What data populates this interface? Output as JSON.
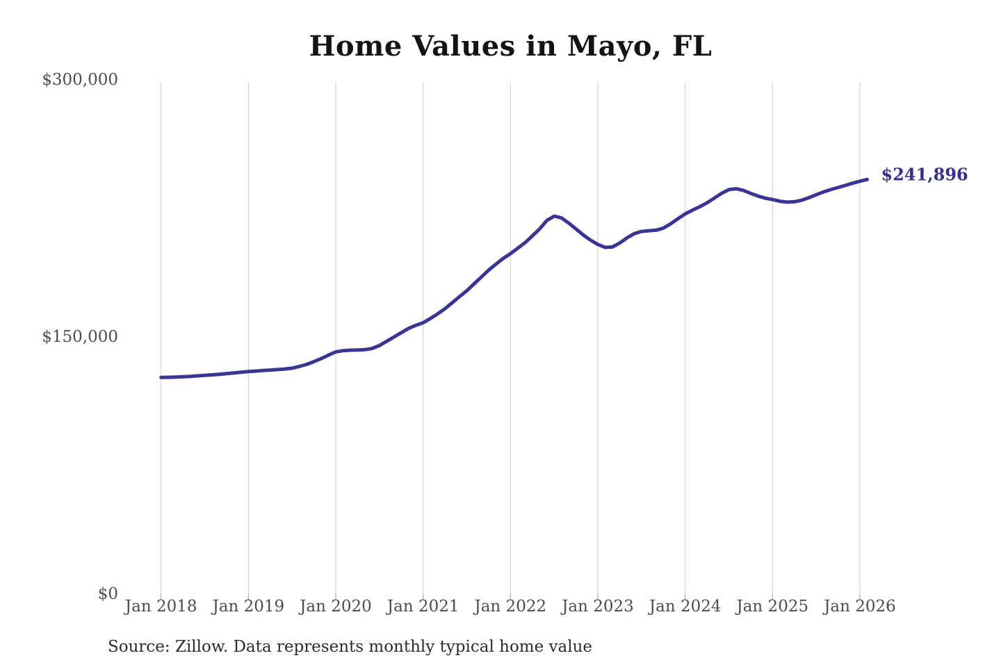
{
  "title": "Home Values in Mayo, FL",
  "annotation": {
    "label": "$241,896"
  },
  "source": "Source: Zillow. Data represents monthly typical home value",
  "colors": {
    "line": "#3a3594",
    "annotation": "#333090",
    "grid": "#cdcdcd",
    "tick": "#999999",
    "axis_text": "#4d4d4d",
    "title_text": "#141414",
    "source_text": "#2b2b2b",
    "background": "#ffffff"
  },
  "chart_data": {
    "type": "line",
    "title": "Home Values in Mayo, FL",
    "unit": "USD",
    "ylim": [
      0,
      300000
    ],
    "grid": "vertical-only",
    "legend": "none",
    "y_tick_labels": [
      "$0",
      "$150,000",
      "$300,000"
    ],
    "y_tick_values": [
      0,
      150000,
      300000
    ],
    "x_tick_labels": [
      "Jan 2018",
      "Jan 2019",
      "Jan 2020",
      "Jan 2021",
      "Jan 2022",
      "Jan 2023",
      "Jan 2024",
      "Jan 2025",
      "Jan 2026"
    ],
    "series": [
      {
        "name": "Monthly typical home value",
        "start": "2018-01",
        "frequency": "monthly",
        "end_label": "$241,896",
        "values": [
          126400,
          126500,
          126600,
          126800,
          127000,
          127300,
          127600,
          127900,
          128200,
          128600,
          129000,
          129400,
          129800,
          130100,
          130400,
          130700,
          131000,
          131300,
          131800,
          132800,
          134000,
          135600,
          137400,
          139400,
          141300,
          142000,
          142300,
          142400,
          142600,
          143300,
          145000,
          147500,
          150000,
          152500,
          155000,
          156800,
          158300,
          160800,
          163500,
          166500,
          170000,
          173500,
          177000,
          181000,
          185000,
          189000,
          192500,
          195800,
          198600,
          201800,
          205000,
          209000,
          213000,
          218000,
          220500,
          219500,
          216500,
          213000,
          209500,
          206500,
          204000,
          202300,
          202500,
          204800,
          207800,
          210300,
          211600,
          212000,
          212300,
          213500,
          216000,
          219000,
          221800,
          224000,
          226000,
          228300,
          231000,
          233800,
          236000,
          236500,
          235500,
          233800,
          232200,
          231000,
          230200,
          229200,
          228700,
          228900,
          229800,
          231300,
          233000,
          234600,
          236000,
          237200,
          238400,
          239700,
          240900,
          241896
        ]
      }
    ]
  }
}
